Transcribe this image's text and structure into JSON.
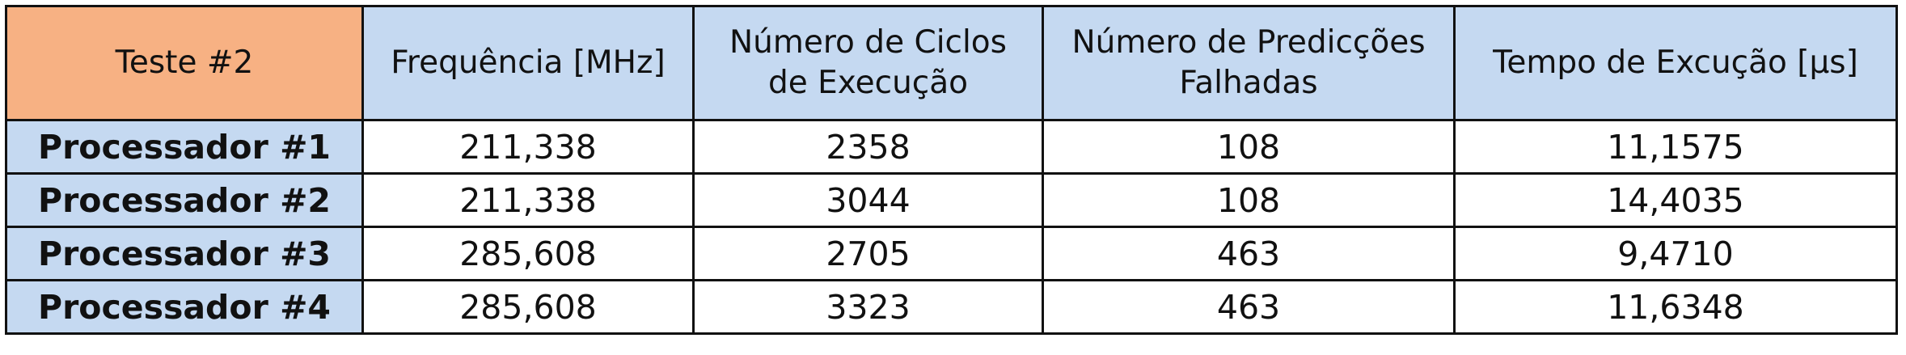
{
  "table": {
    "corner": "Teste #2",
    "headers": [
      [
        "Frequência [MHz]"
      ],
      [
        "Número de Ciclos",
        "de Execução"
      ],
      [
        "Número de Predicções",
        "Falhadas"
      ],
      [
        "Tempo de Excução [µs]"
      ]
    ],
    "rows": [
      {
        "label": "Processador #1",
        "cells": [
          "211,338",
          "2358",
          "108",
          "11,1575"
        ]
      },
      {
        "label": "Processador #2",
        "cells": [
          "211,338",
          "3044",
          "108",
          "14,4035"
        ]
      },
      {
        "label": "Processador #3",
        "cells": [
          "285,608",
          "2705",
          "463",
          "9,4710"
        ]
      },
      {
        "label": "Processador #4",
        "cells": [
          "285,608",
          "3323",
          "463",
          "11,6348"
        ]
      }
    ]
  },
  "colors": {
    "header_fill": "#c5d9f1",
    "corner_fill": "#f7b183",
    "row_label_fill": "#c5d9f1",
    "border": "#111111"
  }
}
